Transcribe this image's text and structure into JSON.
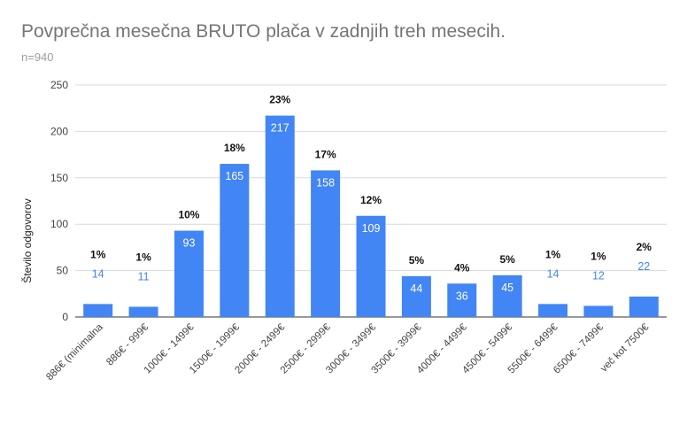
{
  "chart_data": {
    "type": "bar",
    "title": "Povprečna mesečna BRUTO plača v zadnjih treh mesecih.",
    "subtitle": "n=940",
    "xlabel": "",
    "ylabel": "Število odgovorov",
    "ylim": [
      0,
      250
    ],
    "yticks": [
      0,
      50,
      100,
      150,
      200,
      250
    ],
    "grid": true,
    "legend": "none",
    "bar_color": "#4285f4",
    "categories": [
      "886€ (minimalna",
      "886€ - 999€",
      "1000€ - 1499€",
      "1500€ - 1999€",
      "2000€ - 2499€",
      "2500€ - 2999€",
      "3000€ - 3499€",
      "3500€ - 3999€",
      "4000€ - 4499€",
      "4500€ - 5499€",
      "5500€ - 6499€",
      "6500€ - 7499€",
      "več kot 7500€"
    ],
    "values": [
      14,
      11,
      93,
      165,
      217,
      158,
      109,
      44,
      36,
      45,
      14,
      12,
      22
    ],
    "percent_labels": [
      "1%",
      "1%",
      "10%",
      "18%",
      "23%",
      "17%",
      "12%",
      "5%",
      "4%",
      "5%",
      "1%",
      "1%",
      "2%"
    ]
  }
}
